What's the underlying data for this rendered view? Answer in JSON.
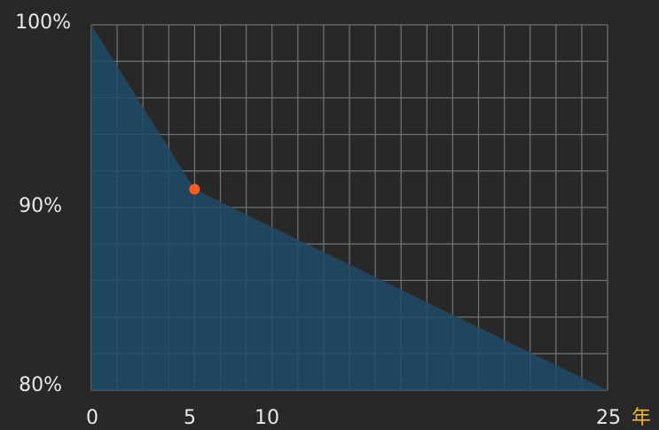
{
  "chart_data": {
    "type": "area",
    "x": [
      0,
      5,
      25
    ],
    "y": [
      100,
      91,
      80
    ],
    "xlim": [
      0,
      25
    ],
    "ylim": [
      80,
      100
    ],
    "x_ticks": [
      "0",
      "5",
      "10",
      "25"
    ],
    "y_ticks": [
      "100%",
      "90%",
      "80%"
    ],
    "x_unit": "年",
    "highlight_point": {
      "x": 5,
      "y": 91
    },
    "grid": true,
    "colors": {
      "background": "#282828",
      "area_fill": "#1f4a68",
      "grid": "#6a7278",
      "highlight": "#ff5a1f",
      "tick_text": "#e8e8e8",
      "unit_text": "#f0b429"
    }
  }
}
